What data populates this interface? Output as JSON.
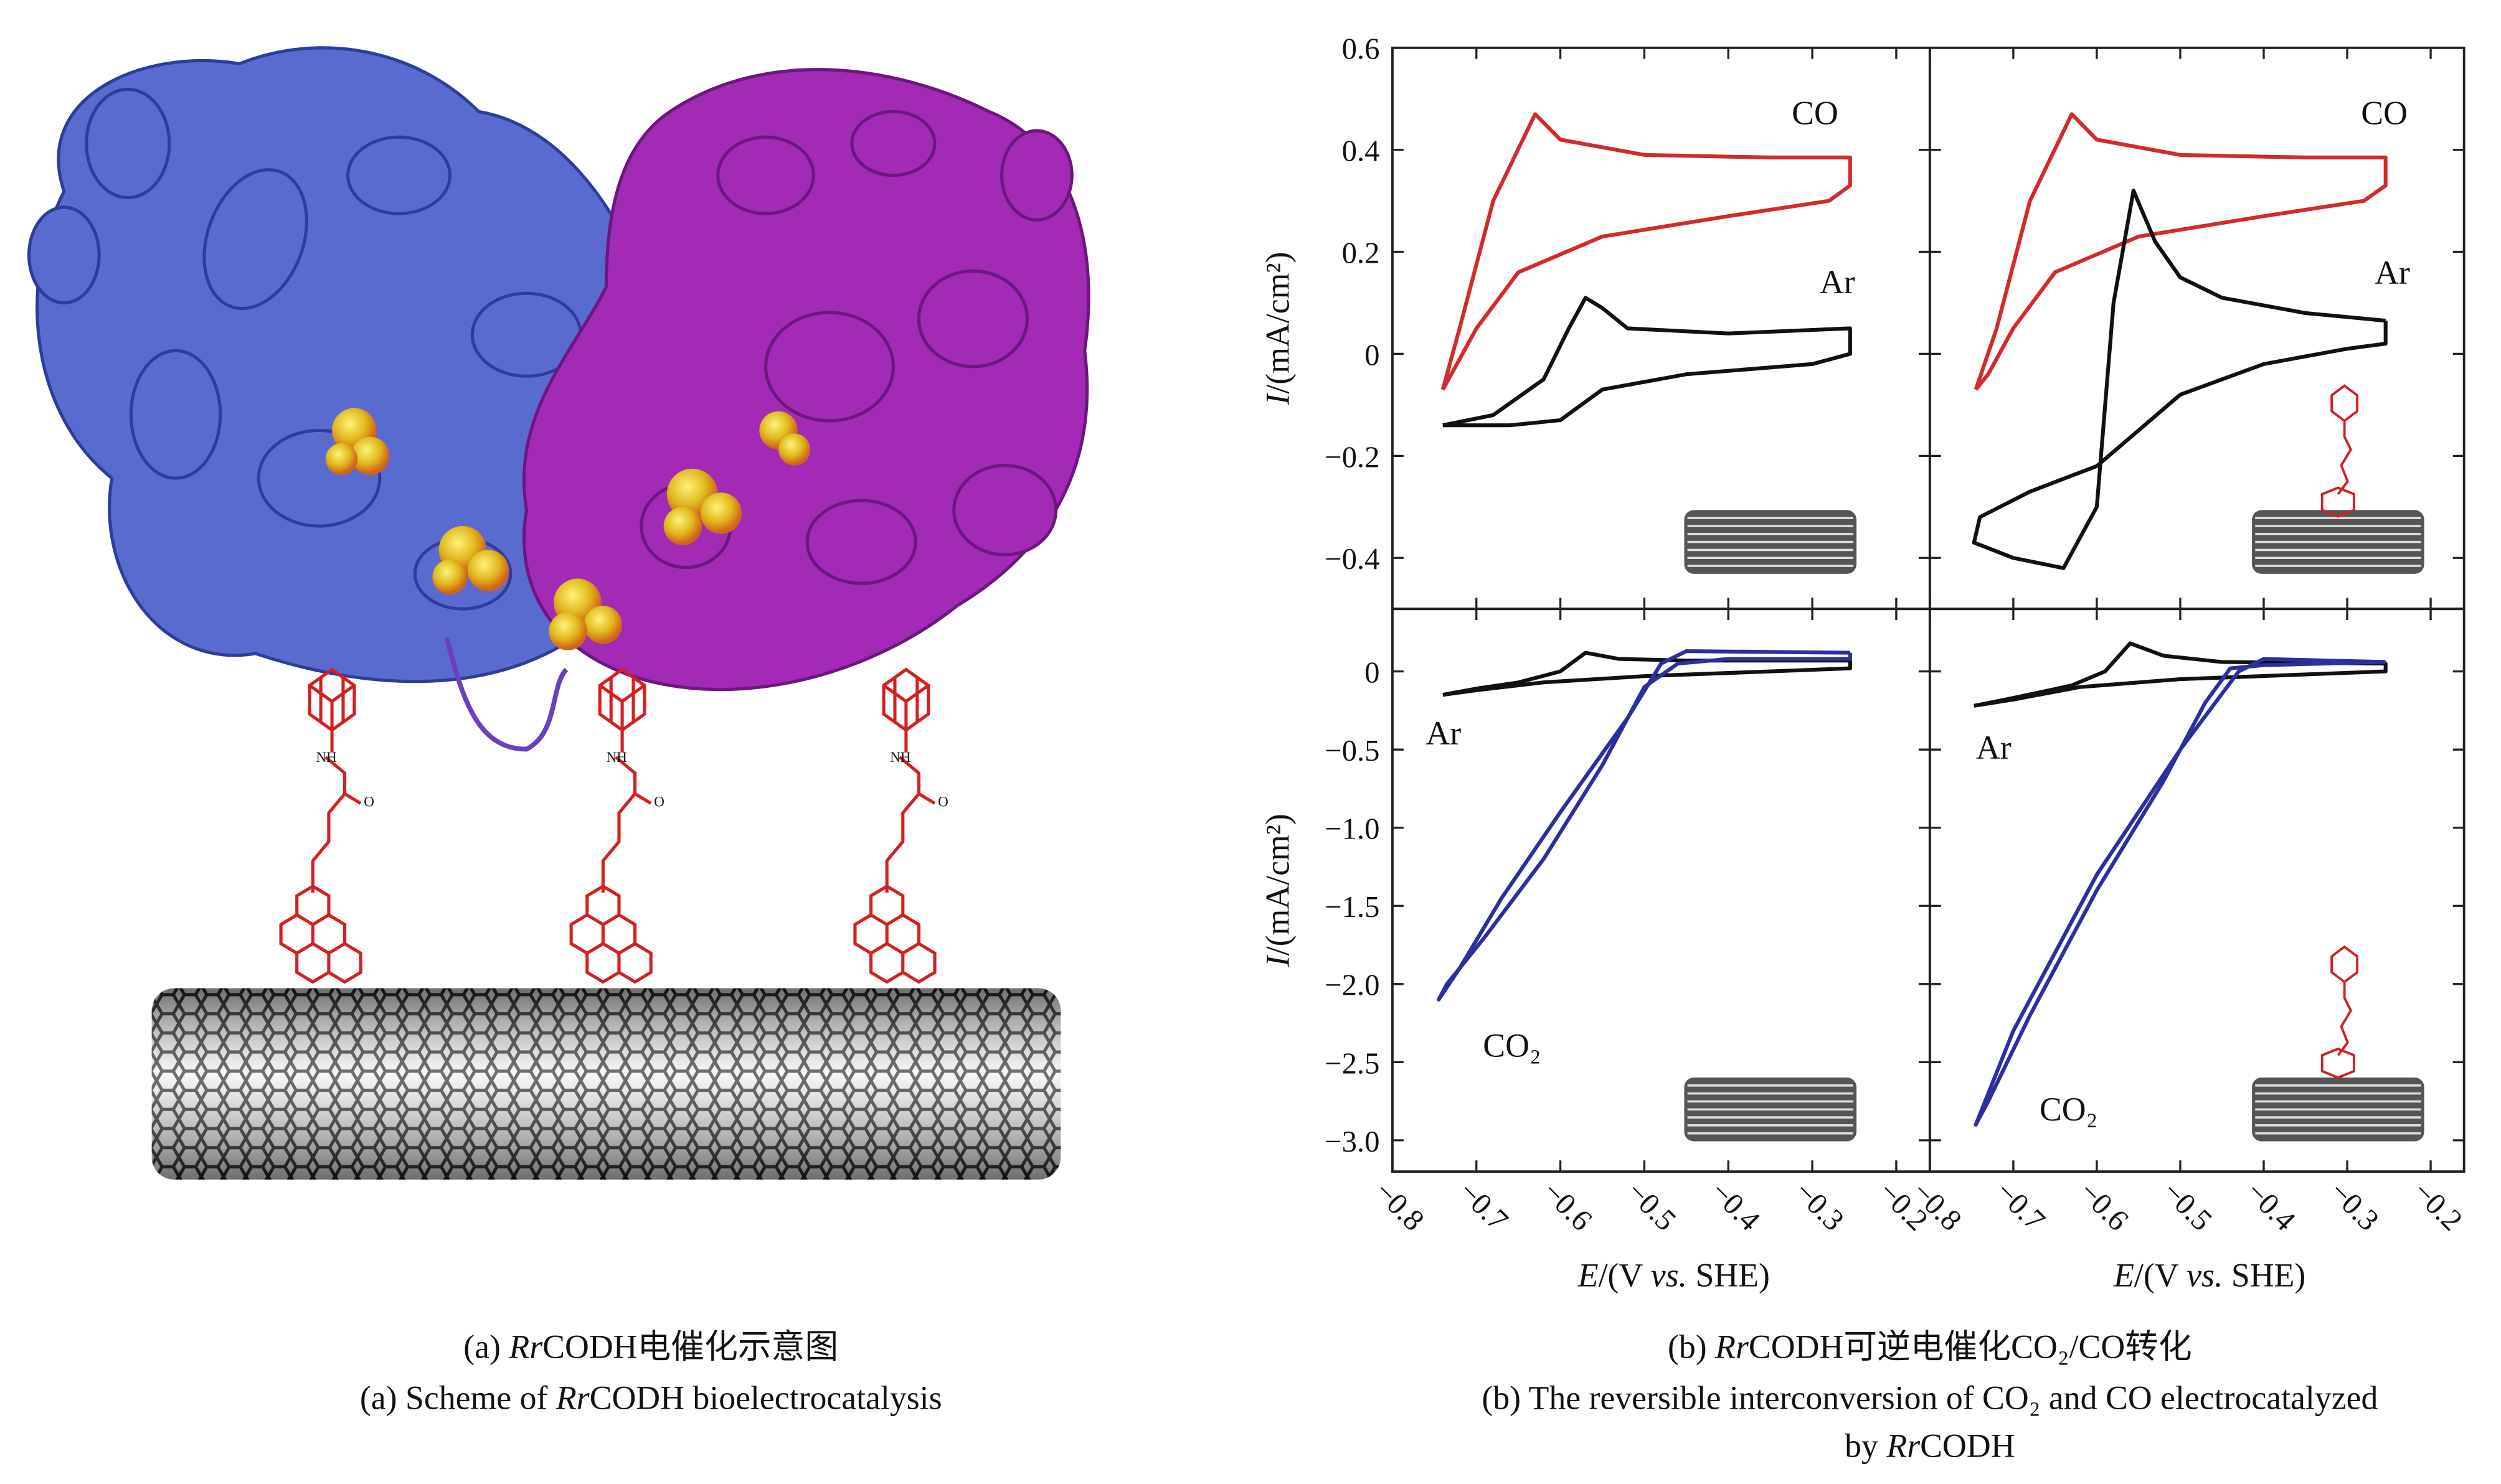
{
  "captions": {
    "a_cn": [
      "(a) ",
      "Rr",
      "CODH电催化示意图"
    ],
    "a_en": [
      "(a) Scheme of ",
      "Rr",
      "CODH bioelectrocatalysis"
    ],
    "b_cn": [
      "(b) ",
      "Rr",
      "CODH可逆电催化CO₂/CO转化"
    ],
    "b_en": [
      "(b) The reversible interconversion of CO₂ and CO electrocatalyzed"
    ],
    "b_en2": [
      "by ",
      "Rr",
      "CODH"
    ]
  },
  "chart_data": [
    {
      "type": "line",
      "xlim": [
        -0.8,
        -0.16
      ],
      "ylim": [
        -0.5,
        0.6
      ],
      "xticks": [
        -0.8,
        -0.7,
        -0.6,
        -0.5,
        -0.4,
        -0.3,
        -0.2
      ],
      "yticks": [
        {
          "value": -0.4,
          "label": "−0.4"
        },
        {
          "value": -0.2,
          "label": "−0.2"
        },
        0,
        0.2,
        0.4,
        0.6
      ],
      "y_label": [
        "I",
        "/(mA/cm²)"
      ],
      "series": [
        {
          "name": "CO",
          "color": "#d42a2a",
          "x": [
            -0.74,
            -0.72,
            -0.68,
            -0.63,
            -0.6,
            -0.5,
            -0.35,
            -0.255,
            -0.255,
            -0.28,
            -0.4,
            -0.55,
            -0.65,
            -0.7,
            -0.73,
            -0.74
          ],
          "values": [
            -0.07,
            0.05,
            0.3,
            0.47,
            0.42,
            0.39,
            0.385,
            0.385,
            0.33,
            0.3,
            0.27,
            0.23,
            0.16,
            0.05,
            -0.04,
            -0.07
          ]
        },
        {
          "name": "Ar",
          "color": "#111111",
          "x": [
            -0.74,
            -0.68,
            -0.62,
            -0.59,
            -0.57,
            -0.55,
            -0.52,
            -0.4,
            -0.255,
            -0.255,
            -0.3,
            -0.45,
            -0.55,
            -0.6,
            -0.66,
            -0.74
          ],
          "values": [
            -0.14,
            -0.12,
            -0.05,
            0.05,
            0.11,
            0.09,
            0.05,
            0.04,
            0.05,
            0.0,
            -0.02,
            -0.04,
            -0.07,
            -0.13,
            -0.14,
            -0.14
          ]
        }
      ]
    },
    {
      "type": "line",
      "xlim": [
        -0.8,
        -0.16
      ],
      "ylim": [
        -0.5,
        0.6
      ],
      "xticks": [
        -0.8,
        -0.7,
        -0.6,
        -0.5,
        -0.4,
        -0.3,
        -0.2
      ],
      "yticks": [
        -0.4,
        -0.2,
        0,
        0.2,
        0.4,
        0.6
      ],
      "series": [
        {
          "name": "CO",
          "color": "#d42a2a",
          "x": [
            -0.745,
            -0.72,
            -0.68,
            -0.63,
            -0.6,
            -0.5,
            -0.35,
            -0.254,
            -0.254,
            -0.28,
            -0.4,
            -0.55,
            -0.65,
            -0.7,
            -0.73,
            -0.745
          ],
          "values": [
            -0.07,
            0.05,
            0.3,
            0.47,
            0.42,
            0.39,
            0.385,
            0.385,
            0.33,
            0.3,
            0.27,
            0.23,
            0.16,
            0.05,
            -0.04,
            -0.07
          ]
        },
        {
          "name": "Ar",
          "color": "#111111",
          "x": [
            -0.254,
            -0.254,
            -0.3,
            -0.4,
            -0.5,
            -0.55,
            -0.6,
            -0.68,
            -0.74,
            -0.747,
            -0.7,
            -0.64,
            -0.6,
            -0.58,
            -0.556,
            -0.53,
            -0.5,
            -0.45,
            -0.35,
            -0.254
          ],
          "values": [
            0.065,
            0.02,
            0.01,
            -0.02,
            -0.08,
            -0.15,
            -0.22,
            -0.27,
            -0.32,
            -0.37,
            -0.4,
            -0.42,
            -0.3,
            0.1,
            0.32,
            0.22,
            0.15,
            0.11,
            0.08,
            0.065
          ]
        }
      ]
    },
    {
      "type": "line",
      "xlim": [
        -0.8,
        -0.16
      ],
      "ylim": [
        -3.2,
        0.4
      ],
      "xticks": [
        {
          "value": -0.8,
          "label": "−0.8"
        },
        {
          "value": -0.7,
          "label": "−0.7"
        },
        {
          "value": -0.6,
          "label": "−0.6"
        },
        {
          "value": -0.5,
          "label": "−0.5"
        },
        {
          "value": -0.4,
          "label": "−0.4"
        },
        {
          "value": -0.3,
          "label": "−0.3"
        },
        {
          "value": -0.2,
          "label": "−0.2"
        }
      ],
      "yticks": [
        {
          "value": -3.0,
          "label": "−3.0"
        },
        {
          "value": -2.5,
          "label": "−2.5"
        },
        {
          "value": -2.0,
          "label": "−2.0"
        },
        {
          "value": -1.5,
          "label": "−1.5"
        },
        {
          "value": -1.0,
          "label": "−1.0"
        },
        {
          "value": -0.5,
          "label": "−0.5"
        },
        0
      ],
      "y_label": [
        "I",
        "/(mA/cm²)"
      ],
      "x_label": [
        "E",
        "/(V ",
        "vs.",
        " SHE)"
      ],
      "series": [
        {
          "name": "Ar",
          "color": "#111111",
          "x": [
            -0.74,
            -0.7,
            -0.65,
            -0.6,
            -0.57,
            -0.53,
            -0.45,
            -0.255,
            -0.255,
            -0.5,
            -0.62,
            -0.7,
            -0.74
          ],
          "values": [
            -0.15,
            -0.11,
            -0.07,
            0.0,
            0.12,
            0.08,
            0.07,
            0.07,
            0.02,
            -0.03,
            -0.07,
            -0.12,
            -0.15
          ]
        },
        {
          "name": "CO₂",
          "color": "#2b2fa0",
          "x": [
            -0.255,
            -0.45,
            -0.48,
            -0.52,
            -0.6,
            -0.67,
            -0.72,
            -0.745,
            -0.735,
            -0.69,
            -0.62,
            -0.55,
            -0.5,
            -0.46,
            -0.4,
            -0.255,
            -0.255
          ],
          "values": [
            0.12,
            0.13,
            0.05,
            -0.3,
            -0.9,
            -1.45,
            -1.9,
            -2.1,
            -2.0,
            -1.7,
            -1.2,
            -0.6,
            -0.1,
            0.05,
            0.08,
            0.08,
            0.12
          ]
        }
      ]
    },
    {
      "type": "line",
      "xlim": [
        -0.8,
        -0.16
      ],
      "ylim": [
        -3.2,
        0.4
      ],
      "xticks": [
        {
          "value": -0.8,
          "label": "−0.8"
        },
        {
          "value": -0.7,
          "label": "−0.7"
        },
        {
          "value": -0.6,
          "label": "−0.6"
        },
        {
          "value": -0.5,
          "label": "−0.5"
        },
        {
          "value": -0.4,
          "label": "−0.4"
        },
        {
          "value": -0.3,
          "label": "−0.3"
        },
        {
          "value": -0.2,
          "label": "−0.2"
        }
      ],
      "yticks": [
        -3.0,
        -2.5,
        -2.0,
        -1.5,
        -1.0,
        -0.5,
        0
      ],
      "x_label": [
        "E",
        "/(V ",
        "vs.",
        " SHE)"
      ],
      "series": [
        {
          "name": "Ar",
          "color": "#111111",
          "x": [
            -0.747,
            -0.7,
            -0.63,
            -0.59,
            -0.56,
            -0.52,
            -0.45,
            -0.254,
            -0.254,
            -0.5,
            -0.62,
            -0.7,
            -0.747
          ],
          "values": [
            -0.22,
            -0.17,
            -0.09,
            0.0,
            0.18,
            0.1,
            0.06,
            0.05,
            0.0,
            -0.05,
            -0.1,
            -0.18,
            -0.22
          ]
        },
        {
          "name": "CO₂",
          "color": "#2b2fa0",
          "x": [
            -0.254,
            -0.4,
            -0.43,
            -0.5,
            -0.6,
            -0.7,
            -0.745,
            -0.73,
            -0.68,
            -0.6,
            -0.52,
            -0.47,
            -0.44,
            -0.4,
            -0.254
          ],
          "values": [
            0.06,
            0.08,
            0.0,
            -0.5,
            -1.3,
            -2.3,
            -2.9,
            -2.75,
            -2.2,
            -1.4,
            -0.7,
            -0.2,
            0.02,
            0.04,
            0.06
          ]
        }
      ]
    }
  ]
}
